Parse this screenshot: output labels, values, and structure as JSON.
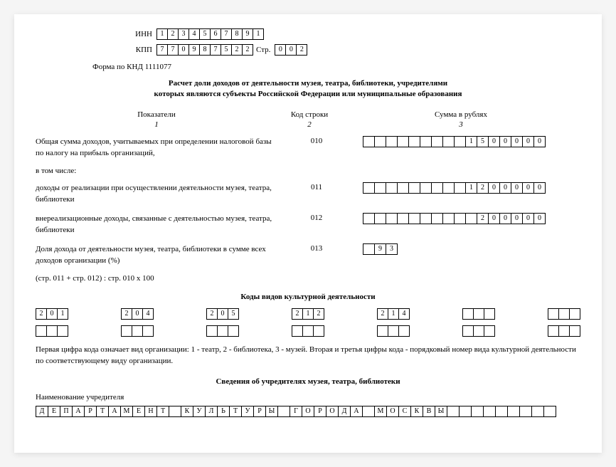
{
  "header": {
    "inn_label": "ИНН",
    "inn": [
      "1",
      "2",
      "3",
      "4",
      "5",
      "6",
      "7",
      "8",
      "9",
      "1"
    ],
    "kpp_label": "КПП",
    "kpp": [
      "7",
      "7",
      "0",
      "9",
      "8",
      "7",
      "5",
      "2",
      "2"
    ],
    "str_label": "Стр.",
    "str": [
      "0",
      "0",
      "2"
    ],
    "form_code": "Форма по КНД 1111077"
  },
  "title_line1": "Расчет доли доходов от деятельности музея, театра, библиотеки, учредителями",
  "title_line2": "которых являются субъекты Российской Федерации или муниципальные образования",
  "columns": {
    "c1": "Показатели",
    "c2": "Код строки",
    "c3": "Сумма в рублях",
    "n1": "1",
    "n2": "2",
    "n3": "3"
  },
  "rows": {
    "r010": {
      "desc": "Общая сумма доходов, учитываемых при определении налоговой базы по налогу на прибыль организаций,",
      "code": "010",
      "cells": [
        "",
        "",
        "",
        "",
        "",
        "",
        "",
        "",
        "",
        "1",
        "5",
        "0",
        "0",
        "0",
        "0",
        "0"
      ]
    },
    "subline": "в том числе:",
    "r011": {
      "desc": "доходы от реализации при осуществлении деятельности музея, театра, библиотеки",
      "code": "011",
      "cells": [
        "",
        "",
        "",
        "",
        "",
        "",
        "",
        "",
        "",
        "1",
        "2",
        "0",
        "0",
        "0",
        "0",
        "0"
      ]
    },
    "r012": {
      "desc": "внереализационные доходы, связанные с деятельностью музея, театра, библиотеки",
      "code": "012",
      "cells": [
        "",
        "",
        "",
        "",
        "",
        "",
        "",
        "",
        "",
        "",
        "2",
        "0",
        "0",
        "0",
        "0",
        "0"
      ]
    },
    "r013": {
      "desc": "Доля дохода от деятельности музея, театра, библиотеки в сумме всех доходов организации (%)",
      "code": "013",
      "cells": [
        "",
        "9",
        "3"
      ]
    },
    "formula": "(стр. 011 + стр. 012) : стр. 010 x 100"
  },
  "activity_codes": {
    "title": "Коды видов культурной деятельности",
    "row1": [
      [
        "2",
        "0",
        "1"
      ],
      [
        "2",
        "0",
        "4"
      ],
      [
        "2",
        "0",
        "5"
      ],
      [
        "2",
        "1",
        "2"
      ],
      [
        "2",
        "1",
        "4"
      ],
      [
        "",
        "",
        ""
      ],
      [
        "",
        "",
        ""
      ]
    ],
    "row2": [
      [
        "",
        "",
        ""
      ],
      [
        "",
        "",
        ""
      ],
      [
        "",
        "",
        ""
      ],
      [
        "",
        "",
        ""
      ],
      [
        "",
        "",
        ""
      ],
      [
        "",
        "",
        ""
      ],
      [
        "",
        "",
        ""
      ]
    ],
    "note": "Первая цифра кода означает вид организации: 1 - театр, 2 - библиотека, 3 - музей. Вторая и третья цифры кода - порядковый номер вида культурной деятельности по соответствующему виду организации."
  },
  "founders": {
    "title": "Сведения об учредителях музея, театра, библиотеки",
    "label": "Наименование учредителя",
    "name": [
      "Д",
      "Е",
      "П",
      "А",
      "Р",
      "Т",
      "А",
      "М",
      "Е",
      "Н",
      "Т",
      "",
      "К",
      "У",
      "Л",
      "Ь",
      "Т",
      "У",
      "Р",
      "Ы",
      "",
      "Г",
      "О",
      "Р",
      "О",
      "Д",
      "А",
      "",
      "М",
      "О",
      "С",
      "К",
      "В",
      "Ы",
      "",
      "",
      "",
      "",
      "",
      "",
      "",
      "",
      ""
    ]
  }
}
